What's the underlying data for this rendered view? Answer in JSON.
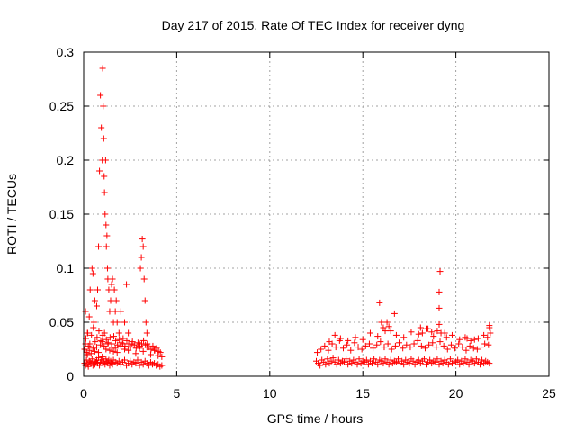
{
  "chart_data": {
    "type": "scatter",
    "title": "Day 217 of 2015, Rate Of TEC Index for receiver dyng",
    "xlabel": "GPS time / hours",
    "ylabel": "ROTI / TECUs",
    "xlim": [
      0,
      25
    ],
    "ylim": [
      0,
      0.3
    ],
    "xticks": [
      0,
      5,
      10,
      15,
      20,
      25
    ],
    "yticks": [
      0,
      0.05,
      0.1,
      0.15,
      0.2,
      0.25,
      0.3
    ],
    "xtick_labels": [
      "0",
      "5",
      "10",
      "15",
      "20",
      "25"
    ],
    "ytick_labels": [
      "0",
      "0.05",
      "0.1",
      "0.15",
      "0.2",
      "0.25",
      "0.3"
    ],
    "grid": true,
    "marker": "+",
    "color": "#ff0000",
    "series": [
      {
        "x": [
          0.05,
          0.1,
          0.15,
          0.2,
          0.25,
          0.3,
          0.35,
          0.4,
          0.45,
          0.5,
          0.55,
          0.6,
          0.65,
          0.7,
          0.75,
          0.8,
          0.85,
          0.9,
          0.95,
          1.0,
          1.05,
          1.1,
          1.15,
          1.2,
          1.25,
          1.3,
          1.35,
          1.4,
          1.45,
          1.5,
          1.55,
          1.6,
          1.7,
          1.8,
          1.9,
          2.0,
          2.1,
          2.2,
          2.3,
          2.4,
          2.5,
          2.6,
          2.7,
          2.8,
          2.9,
          3.0,
          3.1,
          3.2,
          3.3,
          3.4,
          3.5,
          3.6,
          3.7,
          3.8,
          3.9,
          4.0,
          4.1,
          4.2,
          0.05,
          0.1,
          0.15,
          0.2,
          0.25,
          0.3,
          0.4,
          0.5,
          0.6,
          0.7,
          0.8,
          0.9,
          1.0,
          1.1,
          1.2,
          1.3,
          1.4,
          1.5,
          1.6,
          1.7,
          1.8,
          2.0,
          2.2,
          2.4,
          2.6,
          2.8,
          3.0,
          3.2,
          3.4,
          3.6,
          3.8,
          4.0,
          4.2,
          0.1,
          0.2,
          0.3,
          0.35,
          0.45,
          0.5,
          0.55,
          0.6,
          0.7,
          0.75,
          0.8,
          0.85,
          0.9,
          0.95,
          1.0,
          1.02,
          1.05,
          1.08,
          1.1,
          1.12,
          1.15,
          1.18,
          1.2,
          1.22,
          1.25,
          1.28,
          1.3,
          1.35,
          1.4,
          1.45,
          1.5,
          1.55,
          1.6,
          1.65,
          1.7,
          1.75,
          1.8,
          1.9,
          2.0,
          2.1,
          2.2,
          2.3,
          2.4,
          3.0,
          3.05,
          3.1,
          3.15,
          3.2,
          3.25,
          3.3,
          3.35,
          3.4,
          0.12,
          0.22,
          0.33,
          0.42,
          0.52,
          0.62,
          0.72,
          0.82,
          0.92,
          1.02,
          1.12,
          1.22,
          1.32,
          1.42,
          1.52,
          1.62,
          1.72,
          1.82,
          1.92,
          2.02,
          2.12,
          2.22,
          2.32,
          2.42,
          2.52,
          2.62,
          2.72,
          2.82,
          2.92,
          3.02,
          3.12,
          3.22,
          3.32,
          3.42,
          3.52,
          3.62,
          3.72,
          3.82,
          3.92,
          4.02,
          4.12,
          12.5,
          12.6,
          12.7,
          12.8,
          12.9,
          13.0,
          13.1,
          13.2,
          13.3,
          13.4,
          13.5,
          13.6,
          13.7,
          13.8,
          13.9,
          14.0,
          14.1,
          14.2,
          14.3,
          14.4,
          14.5,
          14.6,
          14.7,
          14.8,
          14.9,
          15.0,
          15.1,
          15.2,
          15.3,
          15.4,
          15.5,
          15.6,
          15.7,
          15.8,
          15.9,
          16.0,
          16.1,
          16.2,
          16.3,
          16.4,
          16.5,
          16.6,
          16.7,
          16.8,
          16.9,
          17.0,
          17.1,
          17.2,
          17.3,
          17.4,
          17.5,
          17.6,
          17.7,
          17.8,
          17.9,
          18.0,
          18.1,
          18.2,
          18.3,
          18.4,
          18.5,
          18.6,
          18.7,
          18.8,
          18.9,
          19.0,
          19.1,
          19.2,
          19.3,
          19.4,
          19.5,
          19.6,
          19.7,
          19.8,
          19.9,
          20.0,
          20.1,
          20.2,
          20.3,
          20.4,
          20.5,
          20.6,
          20.7,
          20.8,
          20.9,
          21.0,
          21.1,
          21.2,
          21.3,
          21.4,
          21.5,
          21.6,
          21.7,
          21.8,
          12.55,
          12.75,
          12.95,
          13.15,
          13.35,
          13.55,
          13.75,
          13.95,
          14.15,
          14.35,
          14.55,
          14.75,
          14.95,
          15.15,
          15.35,
          15.55,
          15.75,
          15.95,
          16.15,
          16.35,
          16.55,
          16.75,
          16.95,
          17.15,
          17.35,
          17.55,
          17.75,
          17.95,
          18.15,
          18.35,
          18.55,
          18.75,
          18.95,
          19.15,
          19.35,
          19.55,
          19.75,
          19.95,
          20.15,
          20.35,
          20.55,
          20.75,
          20.95,
          21.15,
          21.35,
          21.55,
          21.75,
          13.2,
          13.5,
          13.8,
          14.2,
          14.6,
          15.0,
          15.4,
          15.8,
          16.1,
          16.3,
          16.5,
          16.8,
          17.2,
          17.6,
          18.0,
          18.2,
          18.5,
          18.8,
          19.0,
          19.1,
          19.2,
          19.5,
          19.8,
          20.2,
          20.5,
          20.8,
          21.2,
          21.5,
          21.7,
          21.8,
          21.85,
          15.9,
          16.7,
          18.1,
          19.1,
          19.1,
          19.15,
          16.0,
          16.2,
          16.4,
          18.4,
          18.7,
          19.4,
          20.6,
          21.0,
          21.8
        ],
        "y": [
          0.012,
          0.01,
          0.015,
          0.011,
          0.009,
          0.014,
          0.013,
          0.012,
          0.016,
          0.01,
          0.014,
          0.011,
          0.013,
          0.015,
          0.012,
          0.017,
          0.01,
          0.013,
          0.015,
          0.018,
          0.012,
          0.014,
          0.011,
          0.016,
          0.013,
          0.012,
          0.015,
          0.01,
          0.014,
          0.012,
          0.011,
          0.015,
          0.013,
          0.012,
          0.014,
          0.011,
          0.013,
          0.015,
          0.01,
          0.012,
          0.014,
          0.011,
          0.013,
          0.012,
          0.015,
          0.01,
          0.013,
          0.011,
          0.014,
          0.012,
          0.01,
          0.013,
          0.011,
          0.012,
          0.01,
          0.011,
          0.009,
          0.01,
          0.025,
          0.03,
          0.022,
          0.02,
          0.028,
          0.024,
          0.021,
          0.026,
          0.023,
          0.027,
          0.022,
          0.029,
          0.032,
          0.028,
          0.025,
          0.03,
          0.024,
          0.027,
          0.023,
          0.026,
          0.022,
          0.028,
          0.025,
          0.024,
          0.03,
          0.021,
          0.026,
          0.023,
          0.027,
          0.02,
          0.024,
          0.019,
          0.018,
          0.06,
          0.04,
          0.055,
          0.08,
          0.1,
          0.095,
          0.05,
          0.07,
          0.065,
          0.08,
          0.12,
          0.19,
          0.26,
          0.23,
          0.2,
          0.285,
          0.25,
          0.22,
          0.185,
          0.17,
          0.15,
          0.2,
          0.14,
          0.12,
          0.13,
          0.1,
          0.09,
          0.08,
          0.06,
          0.07,
          0.085,
          0.09,
          0.05,
          0.08,
          0.06,
          0.07,
          0.05,
          0.04,
          0.06,
          0.03,
          0.05,
          0.085,
          0.04,
          0.03,
          0.1,
          0.11,
          0.127,
          0.12,
          0.09,
          0.07,
          0.05,
          0.04,
          0.035,
          0.04,
          0.03,
          0.038,
          0.045,
          0.032,
          0.036,
          0.042,
          0.033,
          0.038,
          0.04,
          0.034,
          0.031,
          0.036,
          0.03,
          0.037,
          0.033,
          0.029,
          0.034,
          0.031,
          0.035,
          0.028,
          0.033,
          0.03,
          0.027,
          0.032,
          0.029,
          0.026,
          0.031,
          0.028,
          0.03,
          0.033,
          0.029,
          0.03,
          0.027,
          0.025,
          0.028,
          0.024,
          0.026,
          0.023,
          0.022,
          0.014,
          0.012,
          0.01,
          0.015,
          0.013,
          0.011,
          0.016,
          0.012,
          0.014,
          0.017,
          0.013,
          0.011,
          0.015,
          0.012,
          0.014,
          0.013,
          0.016,
          0.011,
          0.014,
          0.012,
          0.015,
          0.013,
          0.011,
          0.016,
          0.012,
          0.014,
          0.013,
          0.015,
          0.011,
          0.014,
          0.012,
          0.016,
          0.013,
          0.011,
          0.015,
          0.014,
          0.012,
          0.016,
          0.013,
          0.011,
          0.015,
          0.012,
          0.014,
          0.013,
          0.016,
          0.012,
          0.014,
          0.011,
          0.015,
          0.013,
          0.012,
          0.016,
          0.014,
          0.011,
          0.013,
          0.015,
          0.012,
          0.014,
          0.016,
          0.011,
          0.013,
          0.015,
          0.012,
          0.014,
          0.013,
          0.016,
          0.011,
          0.014,
          0.012,
          0.015,
          0.013,
          0.011,
          0.016,
          0.012,
          0.014,
          0.013,
          0.015,
          0.011,
          0.014,
          0.012,
          0.016,
          0.013,
          0.011,
          0.015,
          0.014,
          0.012,
          0.016,
          0.013,
          0.011,
          0.015,
          0.012,
          0.014,
          0.013,
          0.012,
          0.022,
          0.025,
          0.028,
          0.024,
          0.03,
          0.027,
          0.033,
          0.026,
          0.029,
          0.024,
          0.031,
          0.027,
          0.025,
          0.028,
          0.03,
          0.026,
          0.029,
          0.032,
          0.027,
          0.03,
          0.025,
          0.028,
          0.031,
          0.026,
          0.029,
          0.027,
          0.03,
          0.033,
          0.028,
          0.026,
          0.029,
          0.031,
          0.027,
          0.032,
          0.028,
          0.025,
          0.029,
          0.026,
          0.03,
          0.027,
          0.024,
          0.028,
          0.026,
          0.025,
          0.027,
          0.03,
          0.029,
          0.032,
          0.038,
          0.035,
          0.033,
          0.036,
          0.034,
          0.04,
          0.037,
          0.045,
          0.05,
          0.042,
          0.038,
          0.036,
          0.041,
          0.039,
          0.04,
          0.044,
          0.037,
          0.042,
          0.048,
          0.04,
          0.036,
          0.038,
          0.034,
          0.036,
          0.033,
          0.035,
          0.038,
          0.036,
          0.045,
          0.04,
          0.068,
          0.058,
          0.045,
          0.063,
          0.078,
          0.097,
          0.05,
          0.042,
          0.046,
          0.044,
          0.041,
          0.04,
          0.035,
          0.034,
          0.047
        ]
      }
    ]
  }
}
